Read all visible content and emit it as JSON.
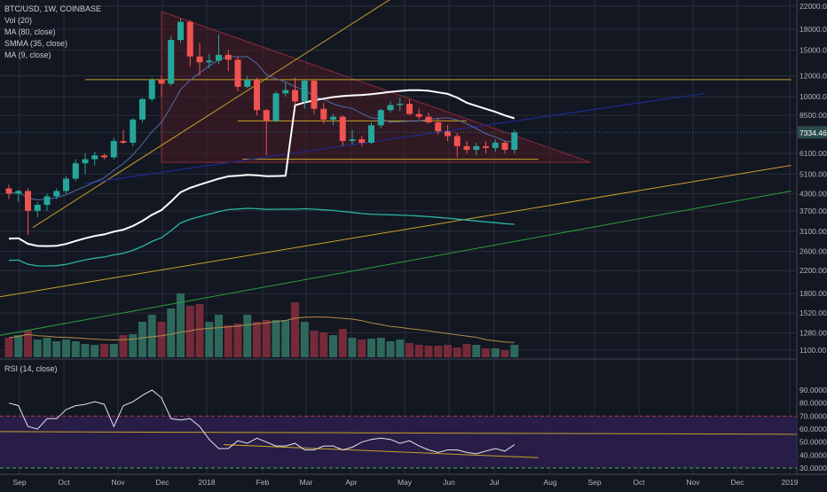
{
  "legend": {
    "symbol": "BTC/USD, 1W, COINBASE",
    "items": [
      "Vol (20)",
      "MA (80, close)",
      "SMMA (35, close)",
      "MA (9, close)"
    ]
  },
  "rsi_legend": "RSI (14, close)",
  "price_label": "7334.46",
  "colors": {
    "background": "#131722",
    "up": "#26a69a",
    "down": "#ef5350",
    "grid": "#2a2e39",
    "axis_text": "#b2b5be",
    "triangle_fill": "#4a1b25",
    "triangle_edge": "#8b2a3a",
    "yellow_line": "#c9a227",
    "blue_line": "#1e2a8c",
    "green_line": "#2e9e3c",
    "teal_ma": "#2bb5a0",
    "white_ma": "#ffffff",
    "blue_ma": "#4f6da8",
    "vol_ma": "#b38b4c",
    "rsi_bg": "#2a1e4b",
    "rsi_line": "#e6e6e6",
    "price_box": "#2a4b4b"
  },
  "chart_data": {
    "type": "candlestick",
    "y_scale": "log",
    "price_axis": [
      "22000.00",
      "18000.00",
      "15000.00",
      "12000.00",
      "10000.00",
      "8500.00",
      "7334.46",
      "6100.00",
      "5100.00",
      "4300.00",
      "3700.00",
      "3100.00",
      "2600.00",
      "2200.00",
      "1800.00",
      "1520.00",
      "1280.00",
      "1100.00"
    ],
    "time_axis": [
      "Sep",
      "Oct",
      "Nov",
      "Dec",
      "2018",
      "Feb",
      "Mar",
      "Apr",
      "May",
      "Jun",
      "Jul",
      "Aug",
      "Sep",
      "Oct",
      "Nov",
      "Dec",
      "2019"
    ],
    "rsi_axis": [
      "90.0000",
      "80.0000",
      "70.0000",
      "60.0000",
      "50.0000",
      "40.0000",
      "30.0000"
    ],
    "candles": [
      {
        "o": 4500,
        "h": 4650,
        "l": 4100,
        "c": 4300
      },
      {
        "o": 4300,
        "h": 4450,
        "l": 4000,
        "c": 4400
      },
      {
        "o": 4400,
        "h": 4500,
        "l": 3000,
        "c": 3700
      },
      {
        "o": 3700,
        "h": 4000,
        "l": 3500,
        "c": 3900
      },
      {
        "o": 3900,
        "h": 4300,
        "l": 3700,
        "c": 4200
      },
      {
        "o": 4200,
        "h": 4500,
        "l": 4100,
        "c": 4400
      },
      {
        "o": 4400,
        "h": 5000,
        "l": 4300,
        "c": 4900
      },
      {
        "o": 4900,
        "h": 5800,
        "l": 4800,
        "c": 5600
      },
      {
        "o": 5600,
        "h": 6100,
        "l": 5100,
        "c": 5800
      },
      {
        "o": 5800,
        "h": 6200,
        "l": 5500,
        "c": 6000
      },
      {
        "o": 6000,
        "h": 6100,
        "l": 5800,
        "c": 5900
      },
      {
        "o": 5900,
        "h": 7000,
        "l": 5800,
        "c": 6800
      },
      {
        "o": 6800,
        "h": 7500,
        "l": 6600,
        "c": 6700
      },
      {
        "o": 6700,
        "h": 8300,
        "l": 6500,
        "c": 8200
      },
      {
        "o": 8200,
        "h": 9900,
        "l": 8000,
        "c": 9800
      },
      {
        "o": 9800,
        "h": 11800,
        "l": 9600,
        "c": 11600
      },
      {
        "o": 11600,
        "h": 12000,
        "l": 10000,
        "c": 11200
      },
      {
        "o": 11200,
        "h": 17000,
        "l": 11000,
        "c": 16400
      },
      {
        "o": 16400,
        "h": 19800,
        "l": 16000,
        "c": 19200
      },
      {
        "o": 19200,
        "h": 19500,
        "l": 13000,
        "c": 14200
      },
      {
        "o": 14200,
        "h": 16000,
        "l": 12000,
        "c": 13500
      },
      {
        "o": 13500,
        "h": 14500,
        "l": 12800,
        "c": 13700
      },
      {
        "o": 13700,
        "h": 17200,
        "l": 13300,
        "c": 14400
      },
      {
        "o": 14400,
        "h": 15000,
        "l": 12500,
        "c": 13800
      },
      {
        "o": 13800,
        "h": 14200,
        "l": 10500,
        "c": 10900
      },
      {
        "o": 10900,
        "h": 12000,
        "l": 10800,
        "c": 11600
      },
      {
        "o": 11600,
        "h": 11800,
        "l": 8500,
        "c": 8900
      },
      {
        "o": 8900,
        "h": 9000,
        "l": 6000,
        "c": 8100
      },
      {
        "o": 8100,
        "h": 10500,
        "l": 8000,
        "c": 10300
      },
      {
        "o": 10300,
        "h": 11300,
        "l": 10000,
        "c": 10600
      },
      {
        "o": 10600,
        "h": 11800,
        "l": 9300,
        "c": 9600
      },
      {
        "o": 9600,
        "h": 11600,
        "l": 9000,
        "c": 11500
      },
      {
        "o": 11500,
        "h": 11600,
        "l": 8600,
        "c": 9000
      },
      {
        "o": 9000,
        "h": 9500,
        "l": 7900,
        "c": 8200
      },
      {
        "o": 8200,
        "h": 8600,
        "l": 7800,
        "c": 8400
      },
      {
        "o": 8400,
        "h": 8500,
        "l": 6500,
        "c": 6800
      },
      {
        "o": 6800,
        "h": 7500,
        "l": 6600,
        "c": 6900
      },
      {
        "o": 6900,
        "h": 7100,
        "l": 6500,
        "c": 6700
      },
      {
        "o": 6700,
        "h": 8000,
        "l": 6600,
        "c": 7800
      },
      {
        "o": 7800,
        "h": 9000,
        "l": 7600,
        "c": 8900
      },
      {
        "o": 8900,
        "h": 9600,
        "l": 8700,
        "c": 9300
      },
      {
        "o": 9300,
        "h": 9900,
        "l": 8800,
        "c": 9400
      },
      {
        "o": 9400,
        "h": 9800,
        "l": 8500,
        "c": 8600
      },
      {
        "o": 8600,
        "h": 9000,
        "l": 8200,
        "c": 8400
      },
      {
        "o": 8400,
        "h": 8700,
        "l": 7900,
        "c": 8000
      },
      {
        "o": 8000,
        "h": 8300,
        "l": 7200,
        "c": 7400
      },
      {
        "o": 7400,
        "h": 7800,
        "l": 6800,
        "c": 7100
      },
      {
        "o": 7100,
        "h": 7300,
        "l": 5900,
        "c": 6500
      },
      {
        "o": 6500,
        "h": 6800,
        "l": 6100,
        "c": 6300
      },
      {
        "o": 6300,
        "h": 6700,
        "l": 6000,
        "c": 6500
      },
      {
        "o": 6500,
        "h": 6800,
        "l": 6100,
        "c": 6400
      },
      {
        "o": 6400,
        "h": 6900,
        "l": 6200,
        "c": 6700
      },
      {
        "o": 6700,
        "h": 6800,
        "l": 6100,
        "c": 6300
      },
      {
        "o": 6300,
        "h": 7500,
        "l": 6100,
        "c": 7334
      }
    ],
    "volumes": [
      0.22,
      0.25,
      0.3,
      0.2,
      0.22,
      0.18,
      0.2,
      0.18,
      0.15,
      0.14,
      0.15,
      0.15,
      0.25,
      0.26,
      0.4,
      0.48,
      0.4,
      0.55,
      0.72,
      0.58,
      0.6,
      0.4,
      0.48,
      0.36,
      0.38,
      0.48,
      0.4,
      0.42,
      0.42,
      0.42,
      0.62,
      0.4,
      0.3,
      0.28,
      0.25,
      0.32,
      0.22,
      0.2,
      0.21,
      0.22,
      0.18,
      0.2,
      0.16,
      0.14,
      0.13,
      0.13,
      0.14,
      0.11,
      0.15,
      0.14,
      0.1,
      0.1,
      0.08,
      0.14
    ],
    "rsi": [
      80,
      78,
      62,
      60,
      68,
      68,
      75,
      78,
      79,
      81,
      79,
      62,
      78,
      81,
      86,
      90,
      84,
      68,
      67,
      68,
      62,
      52,
      45,
      45,
      51,
      49,
      53,
      50,
      47,
      47,
      49,
      44,
      44,
      47,
      47,
      44,
      46,
      50,
      52,
      53,
      52,
      49,
      51,
      47,
      44,
      42,
      44,
      44,
      42,
      41,
      43,
      45,
      43,
      48
    ]
  }
}
